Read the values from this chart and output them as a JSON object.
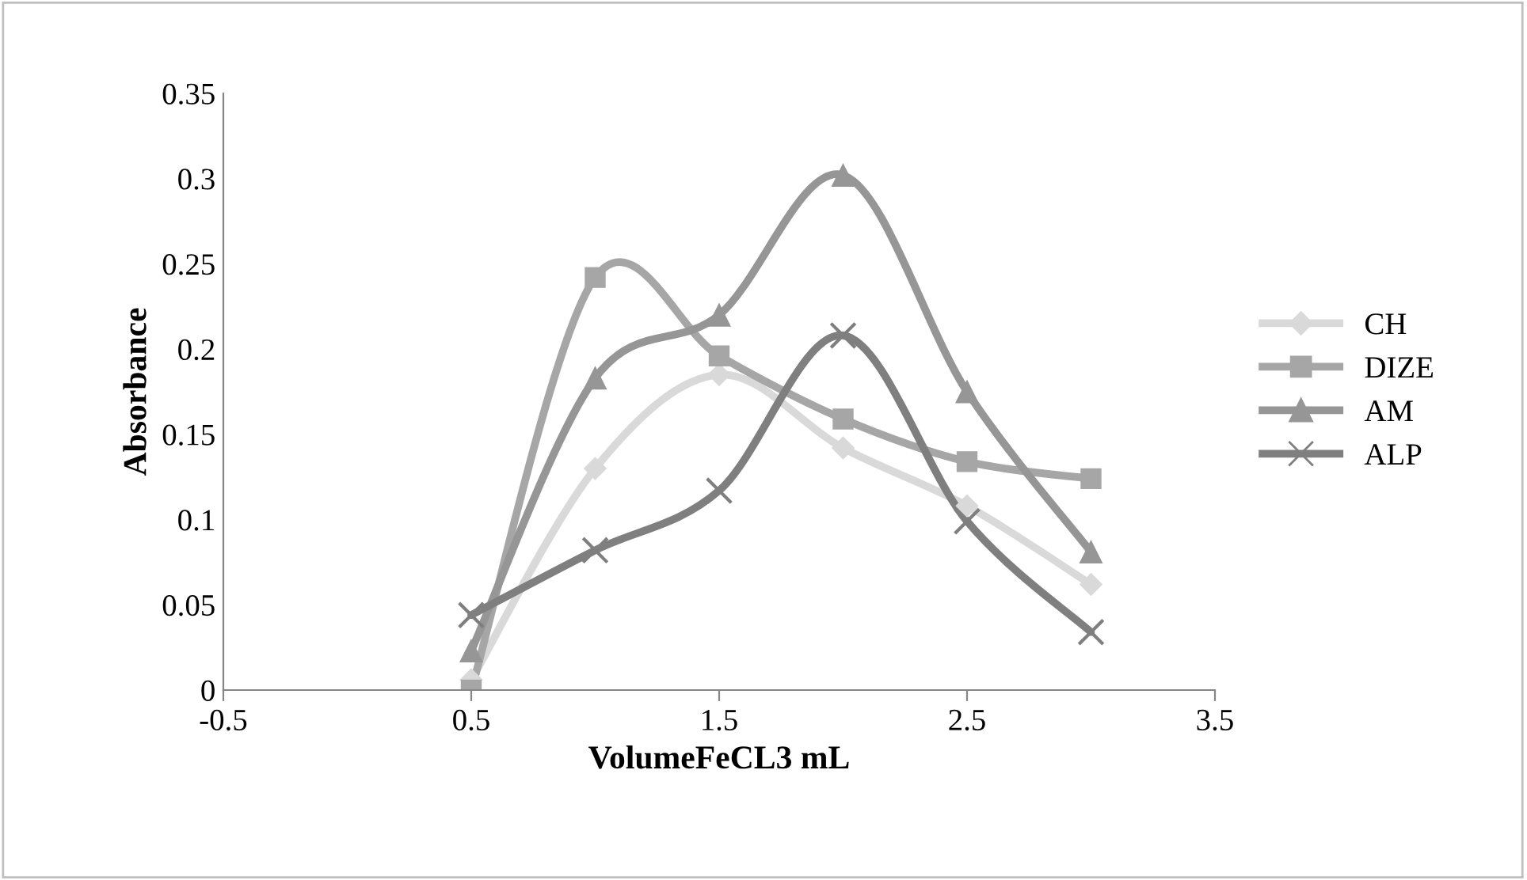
{
  "chart_data": {
    "type": "line",
    "xlabel": "VolumeFeCL3 mL",
    "ylabel": "Absorbance",
    "x": [
      0.5,
      1.0,
      1.5,
      2.0,
      2.5,
      3.0
    ],
    "xlim": [
      -0.5,
      3.5
    ],
    "xticks": [
      -0.5,
      0.5,
      1.5,
      2.5,
      3.5
    ],
    "ylim": [
      0,
      0.35
    ],
    "yticks": [
      0,
      0.05,
      0.1,
      0.15,
      0.2,
      0.25,
      0.3,
      0.35
    ],
    "grid": false,
    "legend": "right",
    "line_style": "solid",
    "series": [
      {
        "name": "CH",
        "color": "#d9d9d9",
        "marker": "diamond",
        "values": [
          0.006,
          0.13,
          0.185,
          0.142,
          0.108,
          0.062
        ]
      },
      {
        "name": "DIZE",
        "color": "#a6a6a6",
        "marker": "square",
        "values": [
          0.0,
          0.242,
          0.196,
          0.159,
          0.134,
          0.124
        ]
      },
      {
        "name": "AM",
        "color": "#969696",
        "marker": "triangle",
        "values": [
          0.023,
          0.183,
          0.22,
          0.302,
          0.175,
          0.081
        ]
      },
      {
        "name": "ALP",
        "color": "#7f7f7f",
        "marker": "cross",
        "values": [
          0.044,
          0.082,
          0.117,
          0.208,
          0.099,
          0.034
        ]
      }
    ]
  }
}
